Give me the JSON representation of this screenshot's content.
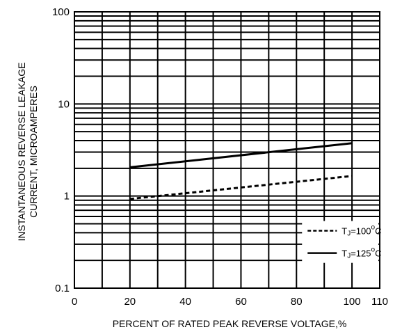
{
  "chart_data": {
    "type": "line",
    "title": "",
    "xlabel": "PERCENT OF RATED PEAK REVERSE VOLTAGE,%",
    "ylabel_lines": [
      "INSTANTANEOUS REVERSE LEAKAGE",
      "CURRENT, MICROAMPERES"
    ],
    "xlim": [
      0,
      110
    ],
    "ylim": [
      0.1,
      100
    ],
    "y_scale": "log",
    "grid": true,
    "x_ticks": [
      {
        "value": 0,
        "label": "0"
      },
      {
        "value": 20,
        "label": "20"
      },
      {
        "value": 40,
        "label": "40"
      },
      {
        "value": 60,
        "label": "60"
      },
      {
        "value": 80,
        "label": "80"
      },
      {
        "value": 100,
        "label": "100"
      },
      {
        "value": 110,
        "label": "110"
      }
    ],
    "y_ticks": [
      {
        "value": 0.1,
        "label": "0.1"
      },
      {
        "value": 1,
        "label": "1"
      },
      {
        "value": 10,
        "label": "10"
      },
      {
        "value": 100,
        "label": "100"
      }
    ],
    "legend_position": "bottom-right",
    "series": [
      {
        "name": "TJ=100°C",
        "label_main": "T",
        "label_sub": "J",
        "label_rest": "=100",
        "label_deg": "o",
        "label_unit": "C",
        "style": "dashed",
        "x": [
          20,
          100
        ],
        "y": [
          0.93,
          1.65
        ]
      },
      {
        "name": "TJ=125°C",
        "label_main": "T",
        "label_sub": "J",
        "label_rest": "=125",
        "label_deg": "o",
        "label_unit": "C",
        "style": "solid",
        "x": [
          20,
          100
        ],
        "y": [
          2.05,
          3.75
        ]
      }
    ]
  }
}
